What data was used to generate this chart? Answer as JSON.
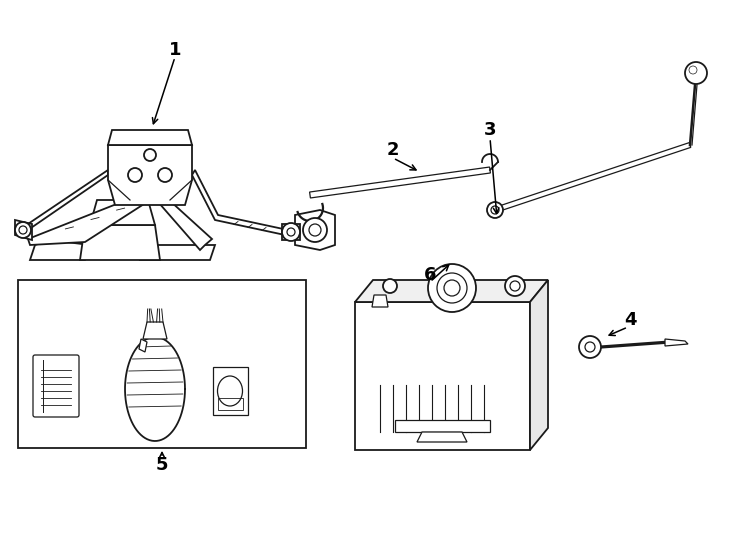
{
  "background_color": "#ffffff",
  "line_color": "#1a1a1a",
  "label_color": "#000000",
  "arrow_color": "#000000",
  "label_fontsize": 13,
  "figsize": [
    7.34,
    5.4
  ],
  "dpi": 100
}
